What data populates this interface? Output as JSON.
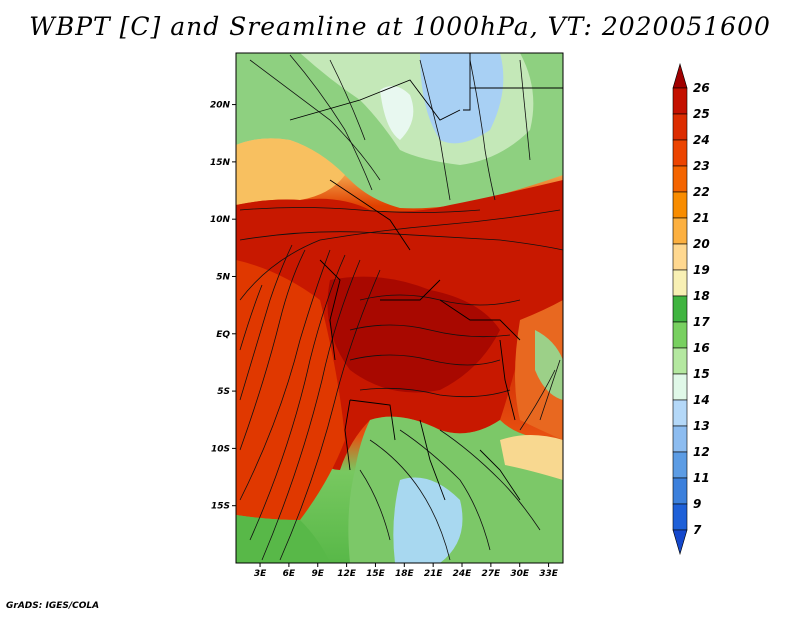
{
  "title": "WBPT [C] and Sreamline at 1000hPa, VT: 2020051600",
  "footer": "GrADS: IGES/COLA",
  "map": {
    "lat_ticks": [
      "20N",
      "15N",
      "10N",
      "5N",
      "EQ",
      "5S",
      "10S",
      "15S"
    ],
    "lat_values": [
      20,
      15,
      10,
      5,
      0,
      -5,
      -10,
      -15
    ],
    "lon_ticks": [
      "3E",
      "6E",
      "9E",
      "12E",
      "15E",
      "18E",
      "21E",
      "24E",
      "27E",
      "30E",
      "33E"
    ],
    "lon_values": [
      3,
      6,
      9,
      12,
      15,
      18,
      21,
      24,
      27,
      30,
      33
    ],
    "lon_range": [
      0.5,
      34.5
    ],
    "lat_range": [
      -20,
      24.5
    ]
  },
  "colorbar": {
    "levels": [
      "26",
      "25",
      "24",
      "23",
      "22",
      "21",
      "20",
      "19",
      "18",
      "17",
      "16",
      "15",
      "14",
      "13",
      "12",
      "11",
      "9",
      "7"
    ],
    "colors": [
      "#a00000",
      "#c41000",
      "#dc2c00",
      "#ec4400",
      "#f46400",
      "#f88c00",
      "#fcb040",
      "#ffd890",
      "#f8f0b4",
      "#40b440",
      "#78d060",
      "#b4e8a0",
      "#e0f8e8",
      "#b4d8f8",
      "#8cbcf0",
      "#5c9ce4",
      "#3c80dc",
      "#1e60d8",
      "#1448cc"
    ]
  }
}
